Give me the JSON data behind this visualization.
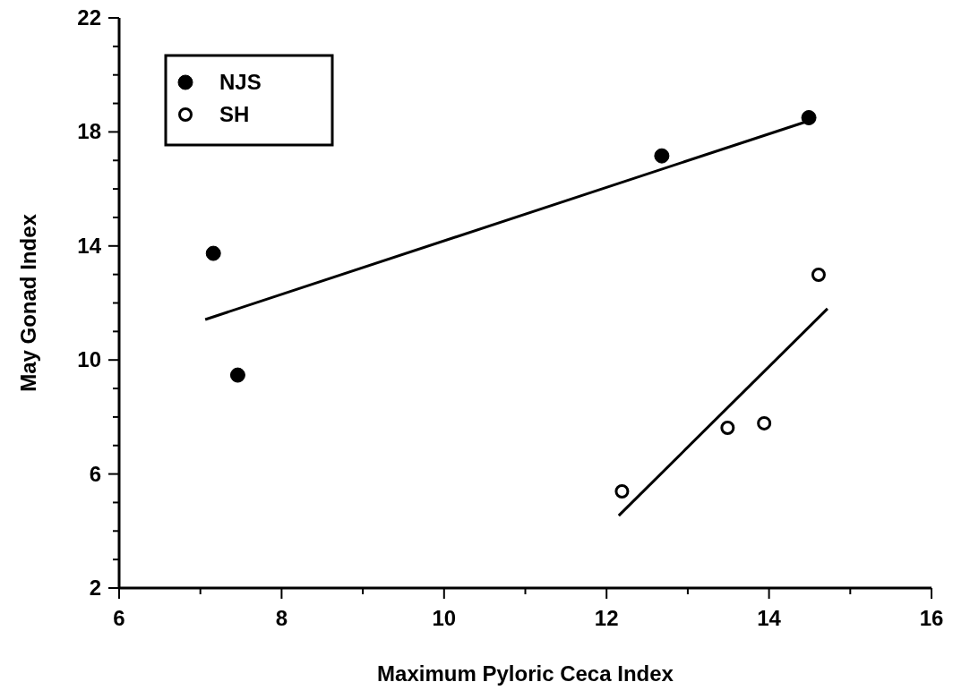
{
  "chart_data": {
    "type": "scatter",
    "xlabel": "Maximum Pyloric Ceca Index",
    "ylabel": "May Gonad Index",
    "xlim": [
      6,
      16
    ],
    "ylim": [
      2,
      22
    ],
    "xticks": [
      6,
      {
        "value": 7,
        "label": null
      },
      8,
      {
        "value": 9,
        "label": null
      },
      10,
      {
        "value": 11,
        "label": null
      },
      12,
      {
        "value": 13,
        "label": null
      },
      14,
      {
        "value": 15,
        "label": null
      },
      16
    ],
    "yticks": [
      2,
      {
        "value": 3,
        "label": null
      },
      {
        "value": 4,
        "label": null
      },
      {
        "value": 5,
        "label": null
      },
      6,
      {
        "value": 7,
        "label": null
      },
      {
        "value": 8,
        "label": null
      },
      {
        "value": 9,
        "label": null
      },
      10,
      {
        "value": 11,
        "label": null
      },
      {
        "value": 12,
        "label": null
      },
      {
        "value": 13,
        "label": null
      },
      14,
      {
        "value": 15,
        "label": null
      },
      {
        "value": 16,
        "label": null
      },
      {
        "value": 17,
        "label": null
      },
      18,
      {
        "value": 19,
        "label": null
      },
      {
        "value": 20,
        "label": null
      },
      {
        "value": 21,
        "label": null
      },
      22
    ],
    "legend": "top left",
    "grid": false,
    "series": [
      {
        "name": "NJS",
        "color": "#000000",
        "marker": "circle",
        "x": [
          7.16,
          7.46,
          12.68,
          14.49
        ],
        "values": [
          13.74,
          9.47,
          17.16,
          18.5
        ]
      },
      {
        "name": "SH",
        "color": "#ffffff",
        "marker": "circle",
        "x": [
          12.19,
          13.49,
          13.94,
          14.61
        ],
        "values": [
          5.39,
          7.62,
          7.78,
          12.99
        ]
      },
      {
        "type": "line",
        "color": "#000000",
        "x": [
          7.06,
          14.49
        ],
        "values": [
          11.42,
          18.39
        ]
      },
      {
        "type": "line",
        "color": "#000000",
        "x": [
          12.15,
          14.72
        ],
        "values": [
          4.54,
          11.8
        ]
      }
    ]
  }
}
